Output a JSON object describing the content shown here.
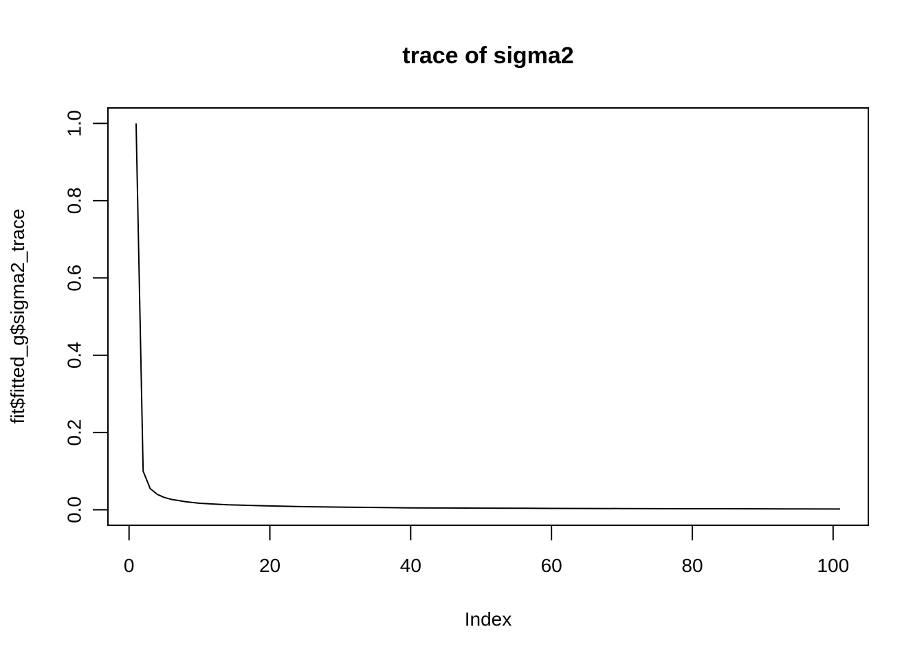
{
  "chart_data": {
    "type": "line",
    "title": "trace of sigma2",
    "xlabel": "Index",
    "ylabel": "fit$fitted_g$sigma2_trace",
    "xlim": [
      -3,
      105
    ],
    "ylim": [
      -0.04,
      1.04
    ],
    "x_ticks": [
      0,
      20,
      40,
      60,
      80,
      100
    ],
    "y_ticks": [
      0.0,
      0.2,
      0.4,
      0.6,
      0.8,
      1.0
    ],
    "x_tick_labels": [
      "0",
      "20",
      "40",
      "60",
      "80",
      "100"
    ],
    "y_tick_labels": [
      "0.0",
      "0.2",
      "0.4",
      "0.6",
      "0.8",
      "1.0"
    ],
    "grid": false,
    "legend": "none",
    "series": [
      {
        "color": "#000000",
        "x": [
          1,
          2,
          3,
          4,
          5,
          6,
          7,
          8,
          9,
          10,
          12,
          14,
          16,
          18,
          20,
          25,
          30,
          35,
          40,
          45,
          50,
          55,
          60,
          65,
          70,
          75,
          80,
          85,
          90,
          95,
          101
        ],
        "values": [
          1.0,
          0.1,
          0.055,
          0.04,
          0.032,
          0.027,
          0.024,
          0.021,
          0.019,
          0.017,
          0.015,
          0.013,
          0.012,
          0.011,
          0.01,
          0.008,
          0.007,
          0.006,
          0.005,
          0.0047,
          0.0043,
          0.004,
          0.0037,
          0.0034,
          0.0032,
          0.003,
          0.0028,
          0.0026,
          0.0024,
          0.0022,
          0.002
        ]
      }
    ]
  }
}
